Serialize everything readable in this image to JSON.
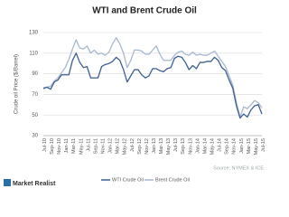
{
  "chart_data": {
    "type": "line",
    "title": "WTI and Brent Crude Oil",
    "y_label": "Crude oil Price ($/Barrel)",
    "source": "Source: NYMEX & ICE",
    "brand": "Market Realist",
    "categories": [
      "Jul-10",
      null,
      "Sep-10",
      null,
      "Nov-10",
      null,
      "Jan-11",
      null,
      "Mar-11",
      null,
      "May-11",
      null,
      "Jul-11",
      null,
      "Sep-11",
      null,
      "Nov-11",
      null,
      "Jan-12",
      null,
      "Mar-12",
      null,
      "May-12",
      null,
      "Jul-12",
      null,
      "Sep-12",
      null,
      "Nov-12",
      null,
      "Jan-13",
      null,
      "Mar-13",
      null,
      "May-13",
      null,
      "Jul-13",
      null,
      "Sep-13",
      null,
      "Nov-13",
      null,
      "Jan-14",
      null,
      "Mar-14",
      null,
      "May-14",
      null,
      "Jul-14",
      null,
      "Sep-14",
      null,
      "Nov-14",
      null,
      "Jan-15",
      null,
      "Mar-15",
      null,
      "May-15",
      null,
      "Jul-15"
    ],
    "series": [
      {
        "name": "WTI Crude Oil",
        "color": "#3d5f93",
        "values": [
          76,
          77,
          75,
          82,
          84,
          89,
          89,
          89,
          103,
          110,
          101,
          96,
          97,
          86,
          86,
          86,
          97,
          99,
          100,
          102,
          106,
          103,
          94,
          82,
          88,
          94,
          94,
          89,
          86,
          88,
          95,
          95,
          93,
          92,
          95,
          96,
          105,
          107,
          106,
          101,
          94,
          98,
          95,
          101,
          101,
          102,
          102,
          106,
          103,
          96,
          93,
          84,
          76,
          59,
          47,
          51,
          48,
          55,
          59,
          60,
          51
        ]
      },
      {
        "name": "Brent Crude Oil",
        "color": "#a8b8d0",
        "values": [
          75,
          77,
          78,
          83,
          86,
          91,
          96,
          104,
          114,
          123,
          115,
          114,
          117,
          110,
          113,
          109,
          110,
          108,
          111,
          119,
          125,
          119,
          110,
          96,
          103,
          113,
          113,
          112,
          109,
          109,
          113,
          117,
          109,
          103,
          103,
          103,
          108,
          111,
          112,
          109,
          108,
          111,
          108,
          109,
          108,
          108,
          110,
          112,
          107,
          102,
          97,
          88,
          79,
          62,
          48,
          58,
          56,
          60,
          64,
          62,
          57
        ]
      }
    ],
    "ylim": [
      30,
      130
    ],
    "yticks": [
      30,
      50,
      70,
      90,
      110,
      130
    ],
    "grid": true,
    "legend": "bottom"
  }
}
